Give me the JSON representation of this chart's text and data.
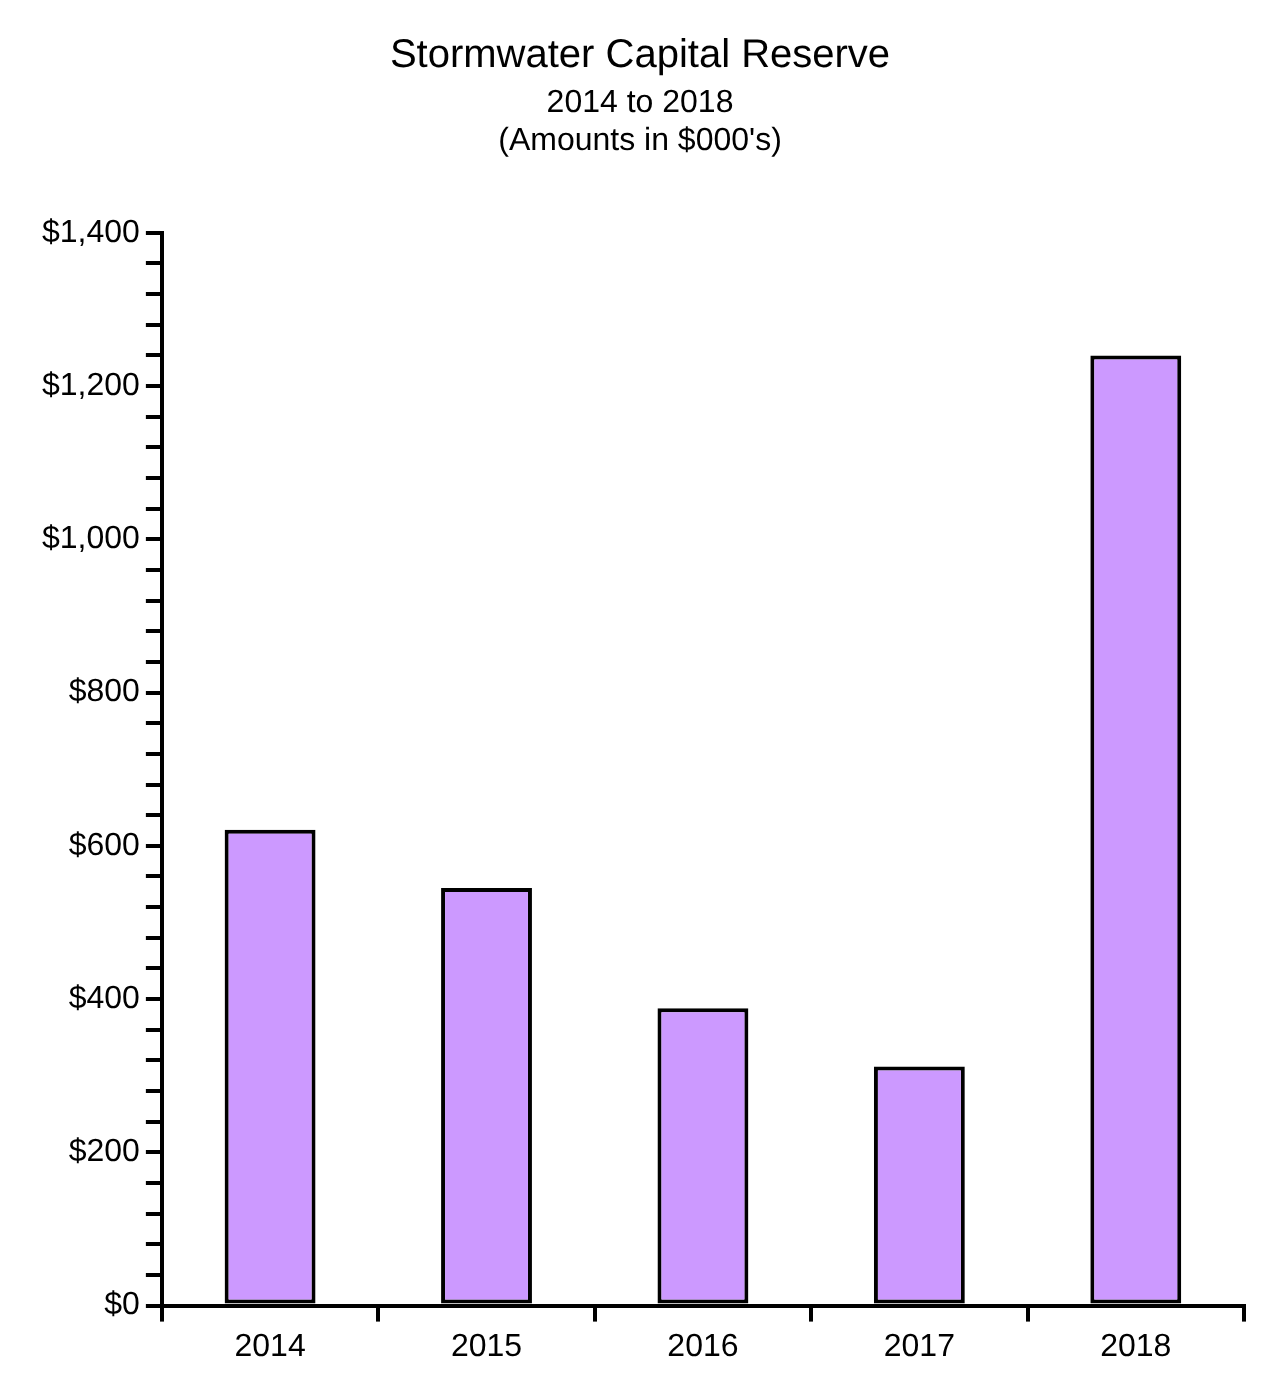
{
  "chart_data": {
    "type": "bar",
    "title": "Stormwater Capital Reserve",
    "subtitle": "2014 to 2018",
    "annotations": [
      "(Amounts in $000's)"
    ],
    "categories": [
      "2014",
      "2015",
      "2016",
      "2017",
      "2018"
    ],
    "values": [
      621,
      545,
      388,
      312,
      1240
    ],
    "color": "#cc99ff",
    "ylim": [
      0,
      1400
    ],
    "yticks": [
      {
        "value": 0,
        "label": "$0"
      },
      {
        "value": 40,
        "label": null
      },
      {
        "value": 80,
        "label": null
      },
      {
        "value": 120,
        "label": null
      },
      {
        "value": 160,
        "label": null
      },
      {
        "value": 200,
        "label": "$200"
      },
      {
        "value": 240,
        "label": null
      },
      {
        "value": 280,
        "label": null
      },
      {
        "value": 320,
        "label": null
      },
      {
        "value": 360,
        "label": null
      },
      {
        "value": 400,
        "label": "$400"
      },
      {
        "value": 440,
        "label": null
      },
      {
        "value": 480,
        "label": null
      },
      {
        "value": 520,
        "label": null
      },
      {
        "value": 560,
        "label": null
      },
      {
        "value": 600,
        "label": "$600"
      },
      {
        "value": 640,
        "label": null
      },
      {
        "value": 680,
        "label": null
      },
      {
        "value": 720,
        "label": null
      },
      {
        "value": 760,
        "label": null
      },
      {
        "value": 800,
        "label": "$800"
      },
      {
        "value": 840,
        "label": null
      },
      {
        "value": 880,
        "label": null
      },
      {
        "value": 920,
        "label": null
      },
      {
        "value": 960,
        "label": null
      },
      {
        "value": 1000,
        "label": "$1,000"
      },
      {
        "value": 1040,
        "label": null
      },
      {
        "value": 1080,
        "label": null
      },
      {
        "value": 1120,
        "label": null
      },
      {
        "value": 1160,
        "label": null
      },
      {
        "value": 1200,
        "label": "$1,200"
      },
      {
        "value": 1240,
        "label": null
      },
      {
        "value": 1280,
        "label": null
      },
      {
        "value": 1320,
        "label": null
      },
      {
        "value": 1360,
        "label": null
      },
      {
        "value": 1400,
        "label": "$1,400"
      }
    ],
    "grid": false,
    "legend": false
  }
}
